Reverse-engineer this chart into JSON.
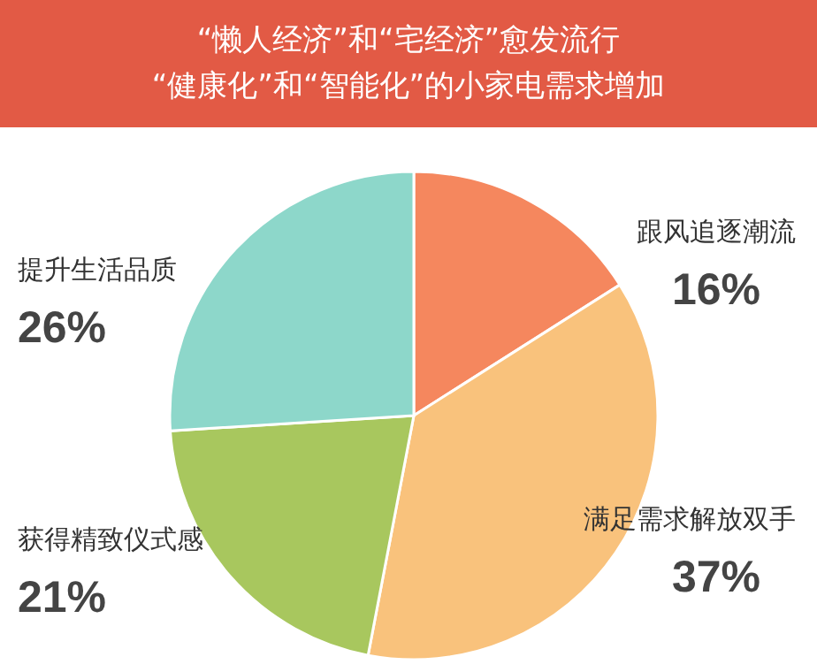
{
  "chart_data": {
    "type": "pie",
    "title": "“懒人经济”和“宅经济”愈发流行\n“健康化”和“智能化”的小家电需求增加",
    "categories": [
      "跟风追逐潮流",
      "满足需求解放双手",
      "获得精致仪式感",
      "提升生活品质"
    ],
    "values": [
      16,
      37,
      21,
      26
    ],
    "colors": [
      "#f5875e",
      "#f9c27c",
      "#a8c75e",
      "#8dd7ca"
    ],
    "value_labels": [
      "16%",
      "37%",
      "21%",
      "26%"
    ]
  }
}
